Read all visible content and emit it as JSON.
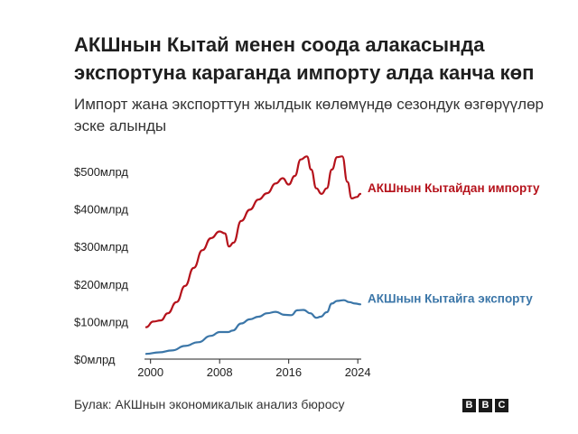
{
  "title": "АКШнын Кытай менен соода алакасында экспортуна караганда импорту алда канча көп",
  "subtitle": "Импорт жана экспорттун жылдык көлөмүндө сезондук өзгөрүүлөр эске алынды",
  "source": "Булак: АКШнын экономикалык анализ бюросу",
  "logo": [
    "B",
    "B",
    "C"
  ],
  "chart_data": {
    "type": "line",
    "ylim": [
      0,
      560
    ],
    "xlim": [
      1999.3,
      2024.4
    ],
    "yticks": [
      {
        "value": 0,
        "label": "$0млрд"
      },
      {
        "value": 100,
        "label": "$100млрд"
      },
      {
        "value": 200,
        "label": "$200млрд"
      },
      {
        "value": 300,
        "label": "$300млрд"
      },
      {
        "value": 400,
        "label": "$400млрд"
      },
      {
        "value": 500,
        "label": "$500млрд"
      }
    ],
    "xticks": [
      {
        "value": 2000,
        "label": "2000"
      },
      {
        "value": 2008,
        "label": "2008"
      },
      {
        "value": 2016,
        "label": "2016"
      },
      {
        "value": 2024,
        "label": "2024"
      }
    ],
    "grid": false,
    "series": [
      {
        "name": "АКШнын Кытайдан импорту",
        "color": "#b5121b",
        "x": [
          1999.5,
          2000.3,
          2001.2,
          2002,
          2003,
          2004,
          2005,
          2006,
          2007,
          2008,
          2008.6,
          2009.1,
          2009.6,
          2010.5,
          2011.5,
          2012.5,
          2013.5,
          2014.5,
          2015.3,
          2016,
          2016.7,
          2017.4,
          2018.1,
          2018.6,
          2019.2,
          2019.8,
          2020.4,
          2021,
          2021.6,
          2022.2,
          2022.8,
          2023.3,
          2023.9,
          2024.3
        ],
        "values": [
          85,
          100,
          103,
          122,
          152,
          195,
          243,
          290,
          322,
          340,
          335,
          300,
          310,
          368,
          398,
          425,
          442,
          468,
          482,
          465,
          488,
          532,
          540,
          505,
          455,
          440,
          455,
          505,
          538,
          540,
          472,
          428,
          432,
          440
        ]
      },
      {
        "name": "АКШнын Кытайга экспорту",
        "color": "#3b76a8",
        "x": [
          1999.5,
          2001,
          2002.5,
          2004,
          2005.5,
          2007,
          2008,
          2009,
          2009.5,
          2010.5,
          2011.5,
          2012.5,
          2013.5,
          2014.5,
          2015.5,
          2016.3,
          2017,
          2017.7,
          2018.5,
          2019.2,
          2019.7,
          2020.4,
          2021,
          2021.6,
          2022.4,
          2023,
          2023.7,
          2024.3
        ],
        "values": [
          14,
          18,
          23,
          35,
          45,
          62,
          72,
          72,
          76,
          95,
          106,
          113,
          122,
          126,
          118,
          117,
          130,
          131,
          122,
          110,
          113,
          125,
          148,
          155,
          157,
          152,
          148,
          146
        ]
      }
    ]
  }
}
